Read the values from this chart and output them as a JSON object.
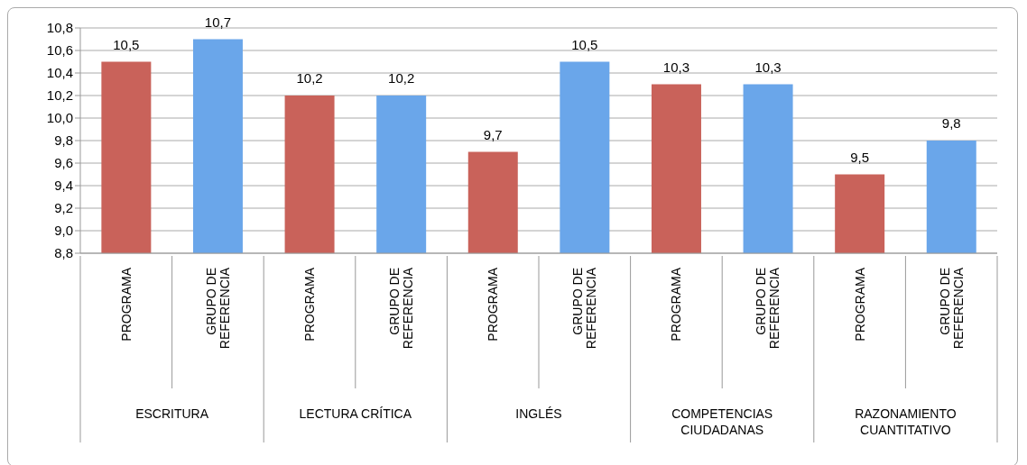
{
  "chart_data": {
    "type": "bar",
    "categories": [
      "PROGRAMA",
      "GRUPO DE REFERENCIA",
      "PROGRAMA",
      "GRUPO DE REFERENCIA",
      "PROGRAMA",
      "GRUPO DE REFERENCIA",
      "PROGRAMA",
      "GRUPO DE REFERENCIA",
      "PROGRAMA",
      "GRUPO DE REFERENCIA"
    ],
    "values": [
      10.5,
      10.7,
      10.2,
      10.2,
      9.7,
      10.5,
      10.3,
      10.3,
      9.5,
      9.8
    ],
    "value_labels": [
      "10,5",
      "10,7",
      "10,2",
      "10,2",
      "9,7",
      "10,5",
      "10,3",
      "10,3",
      "9,5",
      "9,8"
    ],
    "colors": [
      "#c9625a",
      "#6aa6ea",
      "#c9625a",
      "#6aa6ea",
      "#c9625a",
      "#6aa6ea",
      "#c9625a",
      "#6aa6ea",
      "#c9625a",
      "#6aa6ea"
    ],
    "annotations": [
      "ESCRITURA",
      "LECTURA CRÍTICA",
      "INGLÉS",
      "COMPETENCIAS CIUDADANAS",
      "RAZONAMIENTO CUANTITATIVO"
    ],
    "ylim": [
      8.8,
      10.8
    ],
    "yticks": [
      {
        "value": 8.8,
        "label": "8,8"
      },
      {
        "value": 9.0,
        "label": "9,0"
      },
      {
        "value": 9.2,
        "label": "9,2"
      },
      {
        "value": 9.4,
        "label": "9,4"
      },
      {
        "value": 9.6,
        "label": "9,6"
      },
      {
        "value": 9.8,
        "label": "9,8"
      },
      {
        "value": 10.0,
        "label": "10,0"
      },
      {
        "value": 10.2,
        "label": "10,2"
      },
      {
        "value": 10.4,
        "label": "10,4"
      },
      {
        "value": 10.6,
        "label": "10,6"
      },
      {
        "value": 10.8,
        "label": "10,8"
      }
    ],
    "grid": "y",
    "legend": false
  }
}
